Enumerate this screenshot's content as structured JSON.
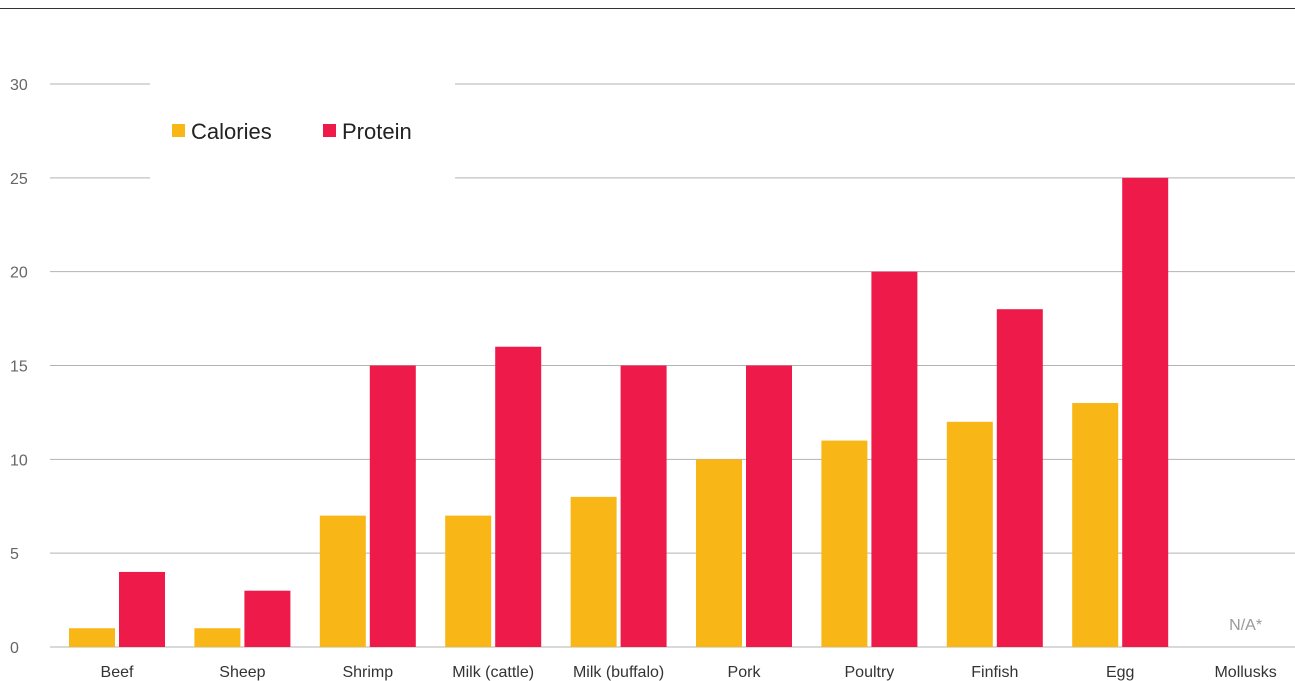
{
  "chart_data": {
    "type": "bar",
    "categories": [
      "Beef",
      "Sheep",
      "Shrimp",
      "Milk (cattle)",
      "Milk (buffalo)",
      "Pork",
      "Poultry",
      "Finfish",
      "Egg",
      "Mollusks"
    ],
    "series": [
      {
        "name": "Calories",
        "color": "#F9B617",
        "values": [
          1,
          1,
          7,
          7,
          8,
          10,
          11,
          12,
          13,
          null
        ]
      },
      {
        "name": "Protein",
        "color": "#EE1B4A",
        "values": [
          4,
          3,
          15,
          16,
          15,
          15,
          20,
          18,
          25,
          null
        ]
      }
    ],
    "ylim": [
      0,
      30
    ],
    "yticks": [
      "0",
      "5",
      "10",
      "15",
      "20",
      "25",
      "30"
    ],
    "grid": true,
    "legend": "top-left",
    "annotations": [
      {
        "category": "Mollusks",
        "text": "N/A*"
      }
    ]
  }
}
